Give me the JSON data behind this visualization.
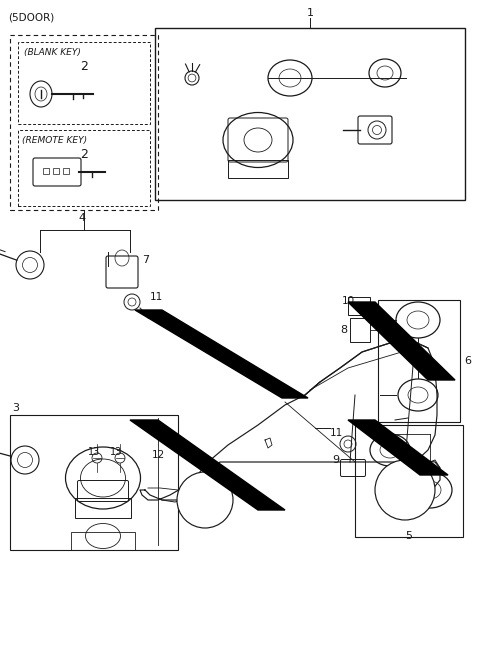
{
  "bg_color": "#ffffff",
  "line_color": "#1a1a1a",
  "fig_width": 4.8,
  "fig_height": 6.56,
  "dpi": 100,
  "top_label": "(5DOOR)",
  "label_1": "1",
  "label_3": "3",
  "label_4": "4",
  "label_5": "5",
  "label_6": "6",
  "label_7": "7",
  "label_8": "8",
  "label_9": "9",
  "label_10": "10",
  "label_11a": "11",
  "label_11b": "11",
  "label_12": "12",
  "label_13a": "13",
  "label_13b": "13",
  "label_blank_key": "(BLANK KEY)",
  "label_remote_key": "(REMOTE KEY)",
  "label_2a": "2",
  "label_2b": "2"
}
